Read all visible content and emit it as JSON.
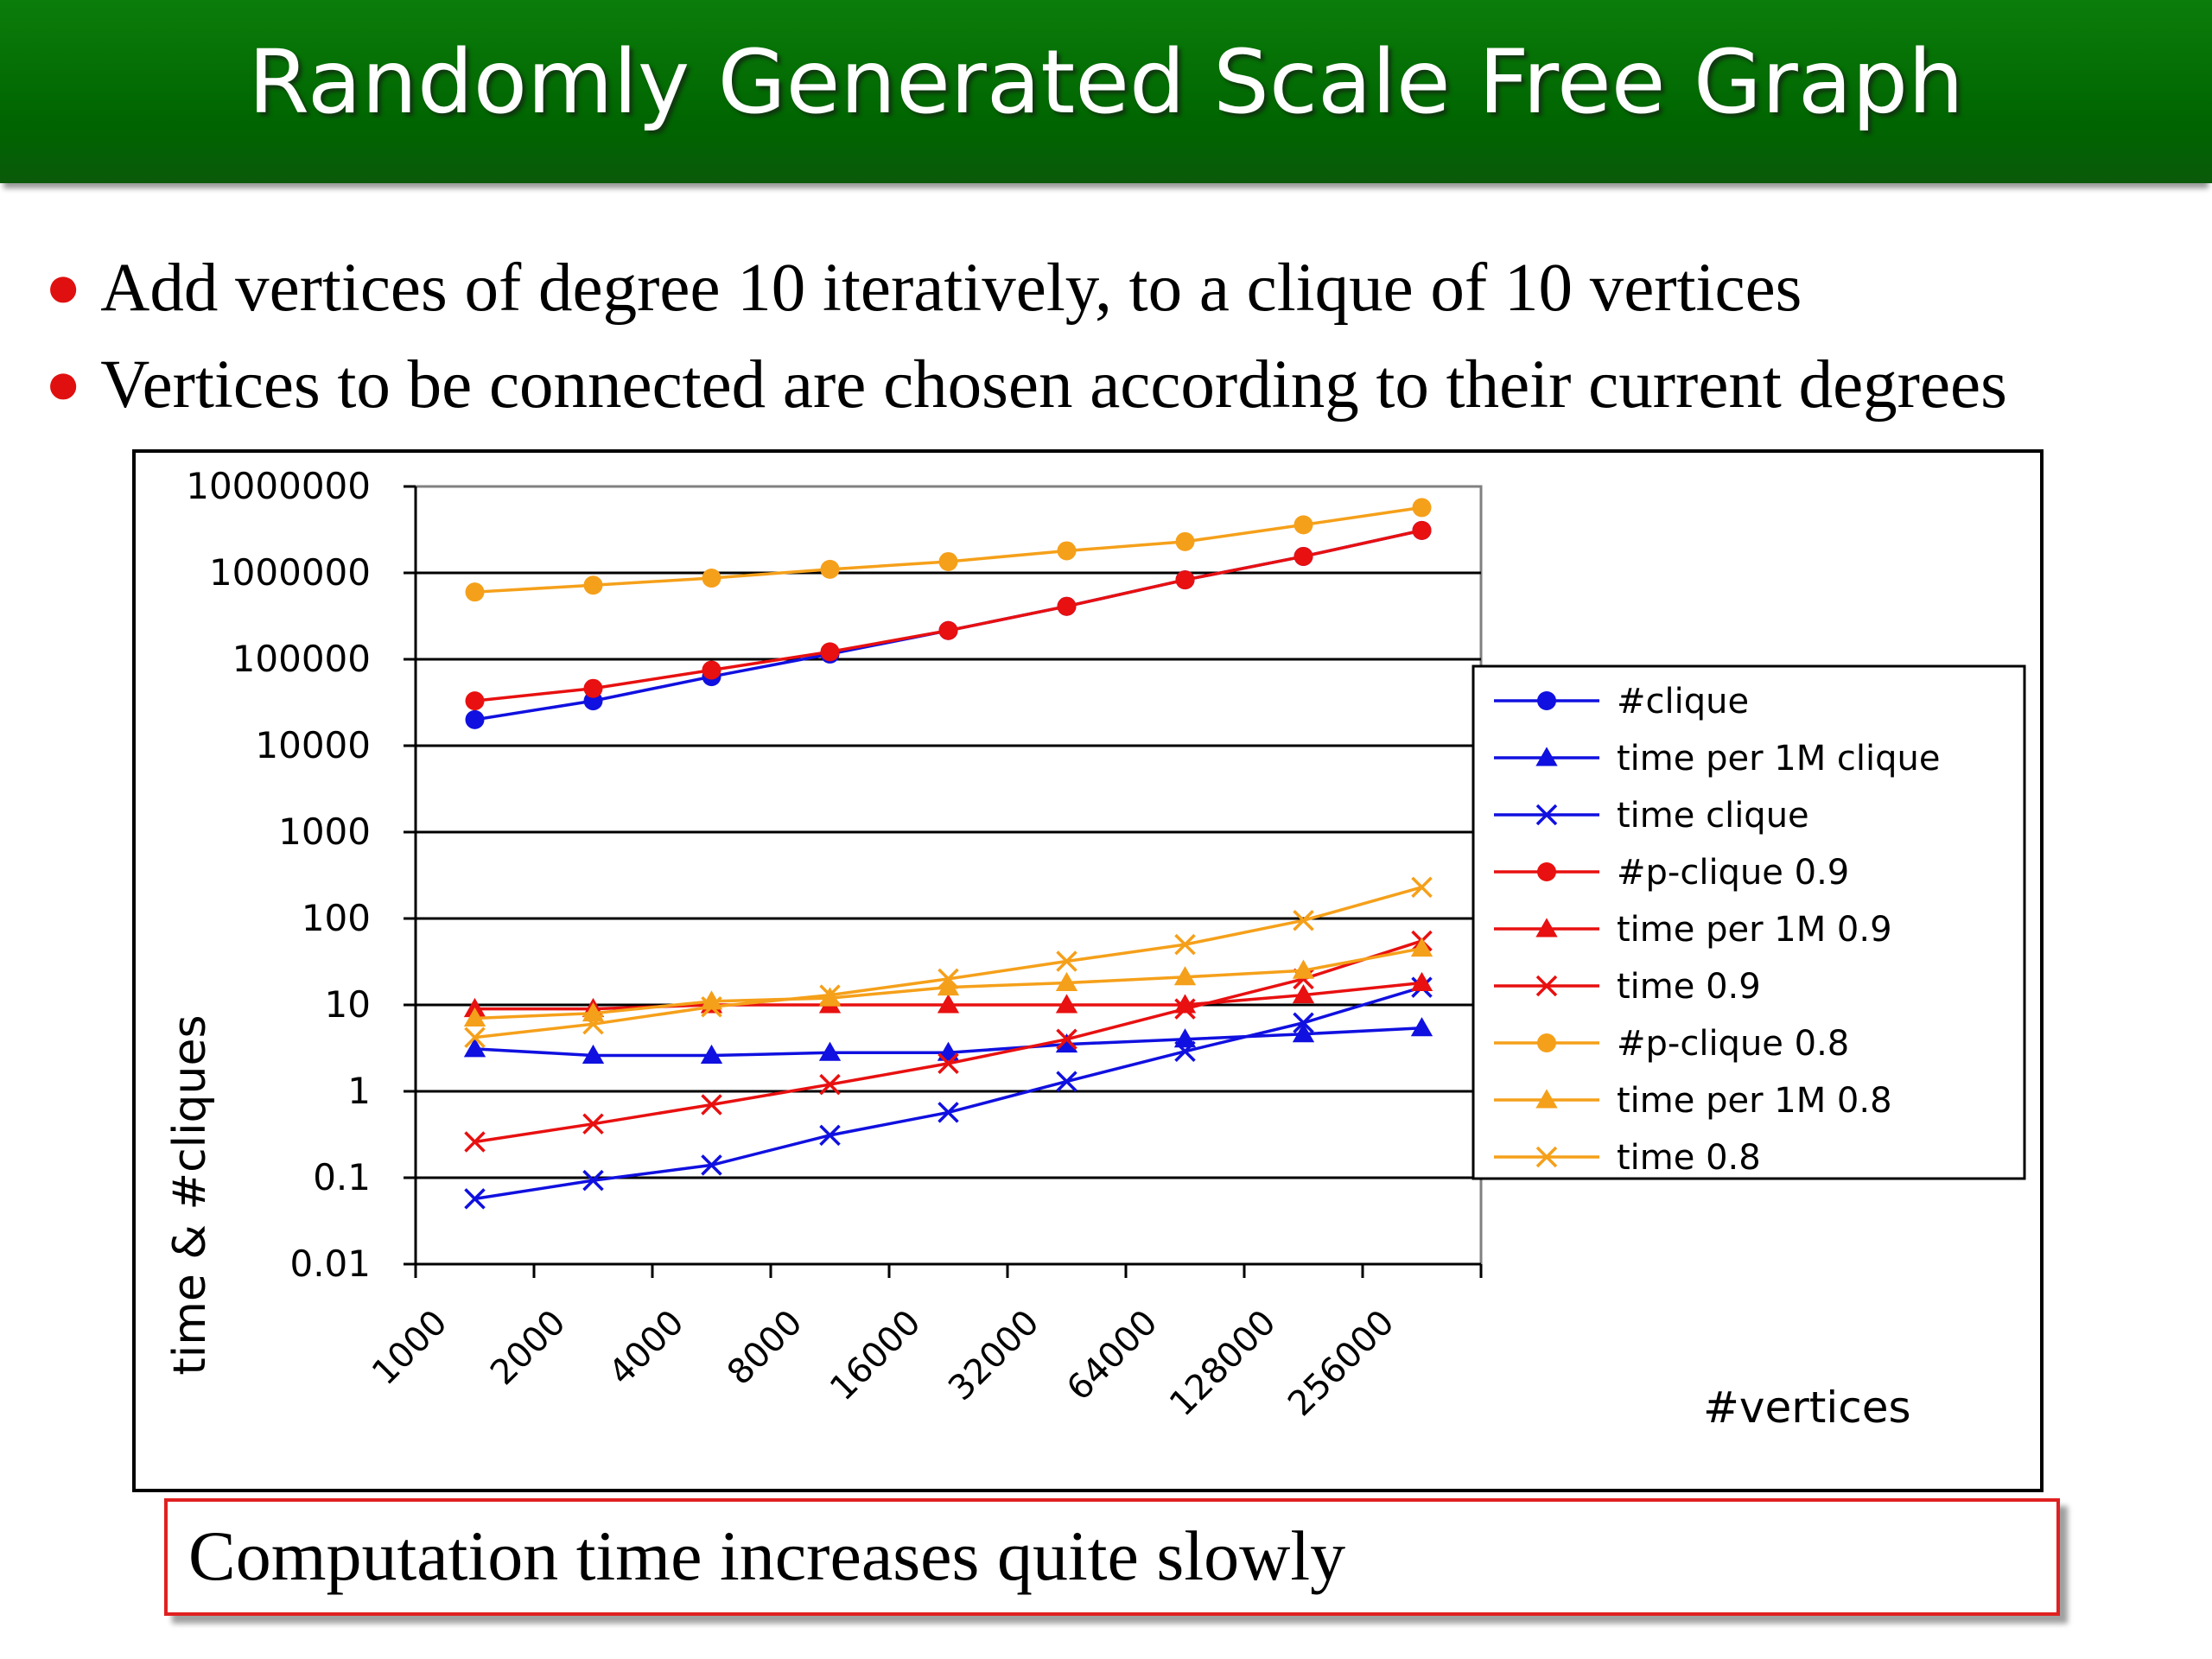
{
  "slide": {
    "title": "Randomly Generated Scale Free Graph",
    "bullets": [
      "Add vertices of degree 10 iteratively, to a clique of 10 vertices",
      "Vertices to be connected are chosen according to their current degrees"
    ],
    "callout": "Computation time increases quite slowly",
    "colors": {
      "title_bar": "#007a00",
      "bullet": "#e01010",
      "callout_border": "#e02020"
    }
  },
  "chart_data": {
    "type": "line",
    "xlabel": "#vertices",
    "ylabel": "time & #cliques",
    "y_scale": "log",
    "ylim": [
      0.01,
      10000000
    ],
    "y_ticks": [
      "0.01",
      "0.1",
      "1",
      "10",
      "100",
      "1000",
      "10000",
      "100000",
      "1000000",
      "10000000"
    ],
    "categories": [
      "1000",
      "2000",
      "4000",
      "8000",
      "16000",
      "32000",
      "64000",
      "128000",
      "256000"
    ],
    "grid": "horizontal major",
    "legend_position": "right",
    "series": [
      {
        "name": "#clique",
        "color": "#1010e0",
        "marker": "circle",
        "values": [
          20000,
          33000,
          63000,
          115000,
          215000,
          410000,
          830000,
          1550000,
          3100000
        ]
      },
      {
        "name": "time per 1M clique",
        "color": "#1010e0",
        "marker": "triangle",
        "values": [
          3.1,
          2.6,
          2.6,
          2.8,
          2.8,
          3.5,
          4.0,
          4.6,
          5.4
        ]
      },
      {
        "name": "time clique",
        "color": "#1010e0",
        "marker": "x",
        "values": [
          0.057,
          0.093,
          0.14,
          0.31,
          0.57,
          1.3,
          2.9,
          6.2,
          16
        ]
      },
      {
        "name": "#p-clique 0.9",
        "color": "#e81010",
        "marker": "circle",
        "values": [
          33000,
          46000,
          75000,
          122000,
          215000,
          410000,
          830000,
          1550000,
          3100000
        ]
      },
      {
        "name": "time per 1M 0.9",
        "color": "#e81010",
        "marker": "triangle",
        "values": [
          9,
          9,
          10,
          10,
          10,
          10,
          10,
          13,
          18
        ]
      },
      {
        "name": "time 0.9",
        "color": "#e81010",
        "marker": "x",
        "values": [
          0.26,
          0.42,
          0.7,
          1.2,
          2.1,
          4.0,
          9.0,
          20,
          55
        ]
      },
      {
        "name": "#p-clique 0.8",
        "color": "#f5a01a",
        "marker": "circle",
        "values": [
          600000,
          720000,
          870000,
          1100000,
          1350000,
          1800000,
          2300000,
          3600000,
          5700000
        ]
      },
      {
        "name": "time per 1M 0.8",
        "color": "#f5a01a",
        "marker": "triangle",
        "values": [
          7,
          8,
          11,
          12,
          16,
          18,
          21,
          25,
          45
        ]
      },
      {
        "name": "time 0.8",
        "color": "#f5a01a",
        "marker": "x",
        "values": [
          4.2,
          6.0,
          9.5,
          13,
          20,
          32,
          50,
          95,
          230
        ]
      }
    ]
  }
}
